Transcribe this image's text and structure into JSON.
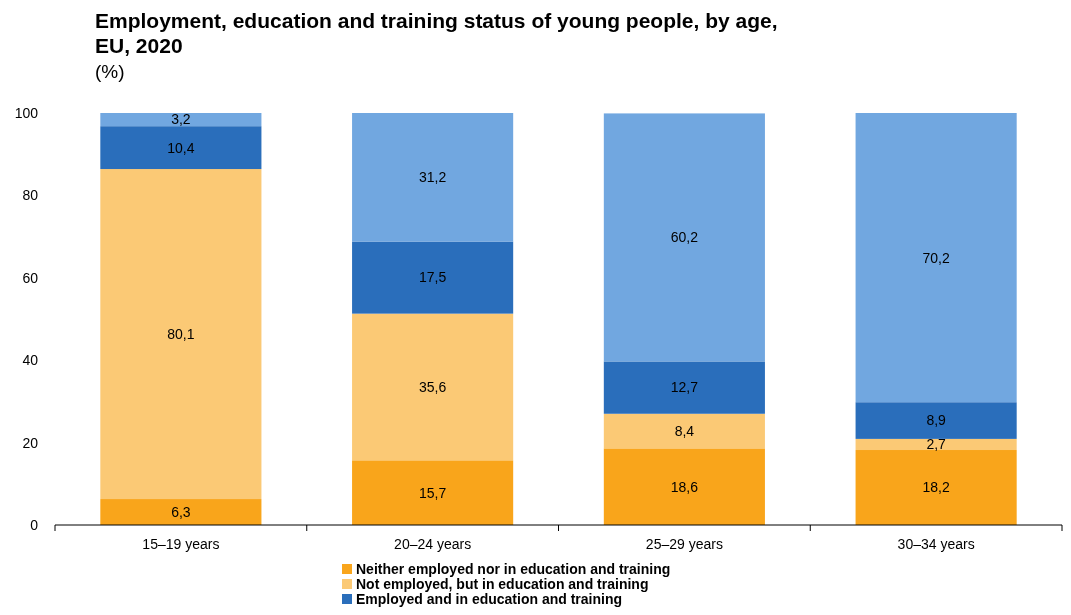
{
  "chart_data": {
    "type": "bar",
    "title": "Employment, education and training status of young people, by age, EU, 2020",
    "subtitle": "(%)",
    "categories": [
      "15–19 years",
      "20–24 years",
      "25–29 years",
      "30–34 years"
    ],
    "stacked": true,
    "ylim": [
      0,
      100
    ],
    "yticks": [
      0,
      20,
      40,
      60,
      80,
      100
    ],
    "grid": false,
    "legend": "bottom",
    "series": [
      {
        "name": "Neither employed nor in education and training",
        "color": "#f9a51b",
        "values": [
          6.3,
          15.7,
          18.6,
          18.2
        ],
        "value_labels": [
          "6,3",
          "15,7",
          "18,6",
          "18,2"
        ]
      },
      {
        "name": "Not employed, but in education and training",
        "color": "#fbc975",
        "values": [
          80.1,
          35.6,
          8.4,
          2.7
        ],
        "value_labels": [
          "80,1",
          "35,6",
          "8,4",
          "2,7"
        ]
      },
      {
        "name": "Employed and in education and training",
        "color": "#2a6ebb",
        "values": [
          10.4,
          17.5,
          12.7,
          8.9
        ],
        "value_labels": [
          "10,4",
          "17,5",
          "12,7",
          "8,9"
        ]
      },
      {
        "color": "#71a7e0",
        "values": [
          3.2,
          31.2,
          60.2,
          70.2
        ],
        "value_labels": [
          "3,2",
          "31,2",
          "60,2",
          "70,2"
        ]
      }
    ]
  }
}
